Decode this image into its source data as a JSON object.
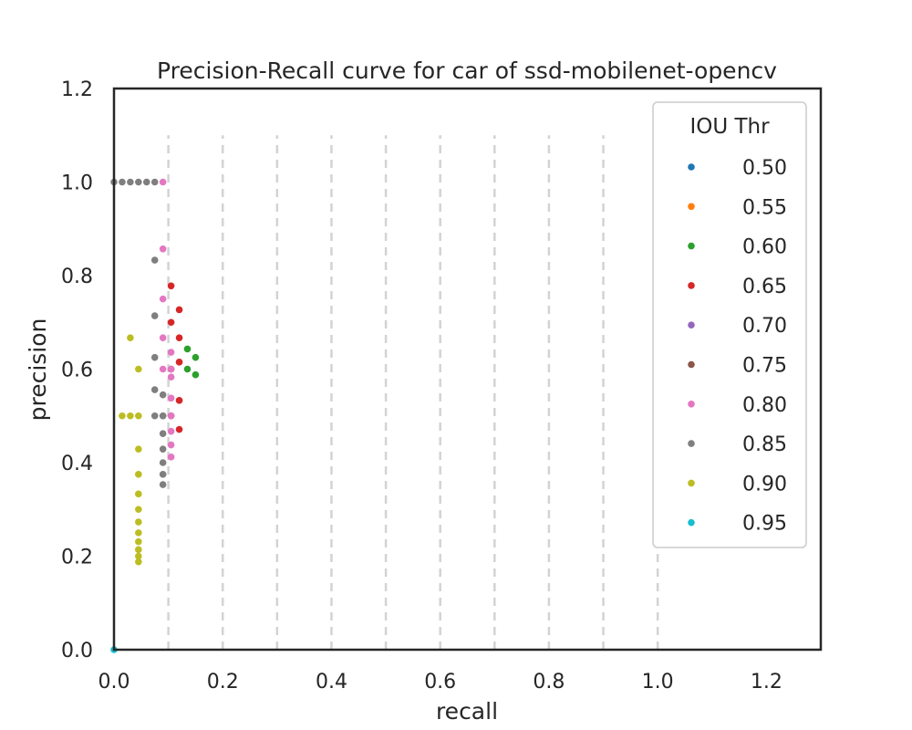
{
  "chart_data": {
    "type": "scatter",
    "title": "Precision-Recall curve for car of ssd-mobilenet-opencv",
    "xlabel": "recall",
    "ylabel": "precision",
    "xlim": [
      0.0,
      1.3
    ],
    "ylim": [
      0.0,
      1.2
    ],
    "xticks": [
      "0.0",
      "0.2",
      "0.4",
      "0.6",
      "0.8",
      "1.0",
      "1.2"
    ],
    "yticks": [
      "0.0",
      "0.2",
      "0.4",
      "0.6",
      "0.8",
      "1.0",
      "1.2"
    ],
    "x_tick_values": [
      0.0,
      0.2,
      0.4,
      0.6,
      0.8,
      1.0,
      1.2
    ],
    "y_tick_values": [
      0.0,
      0.2,
      0.4,
      0.6,
      0.8,
      1.0,
      1.2
    ],
    "vlines": {
      "x": [
        0.1,
        0.2,
        0.3,
        0.4,
        0.5,
        0.6,
        0.7,
        0.8,
        0.9,
        1.0
      ],
      "ymax": 1.1,
      "style": "dashed",
      "color": "#d3d3d3"
    },
    "grid": false,
    "legend": {
      "title": "IOU Thr",
      "position": "top-right"
    },
    "series": [
      {
        "name": "0.50",
        "color": "#1f77b4",
        "x": [],
        "y": []
      },
      {
        "name": "0.55",
        "color": "#ff7f0e",
        "x": [],
        "y": []
      },
      {
        "name": "0.60",
        "color": "#2ca02c",
        "x": [
          0.135,
          0.15,
          0.135,
          0.15
        ],
        "y": [
          0.643,
          0.625,
          0.6,
          0.588
        ]
      },
      {
        "name": "0.65",
        "color": "#d62728",
        "x": [
          0.105,
          0.12,
          0.105,
          0.12,
          0.12,
          0.105,
          0.12,
          0.105,
          0.12
        ],
        "y": [
          0.778,
          0.727,
          0.7,
          0.667,
          0.615,
          0.6,
          0.533,
          0.5,
          0.471
        ]
      },
      {
        "name": "0.70",
        "color": "#9467bd",
        "x": [],
        "y": []
      },
      {
        "name": "0.75",
        "color": "#8c564b",
        "x": [],
        "y": []
      },
      {
        "name": "0.80",
        "color": "#e377c2",
        "x": [
          0.09,
          0.09,
          0.09,
          0.09,
          0.09,
          0.105,
          0.105,
          0.105,
          0.105,
          0.105,
          0.105,
          0.105,
          0.105
        ],
        "y": [
          1.0,
          0.857,
          0.75,
          0.667,
          0.6,
          0.636,
          0.583,
          0.538,
          0.5,
          0.467,
          0.438,
          0.412,
          0.6
        ]
      },
      {
        "name": "0.85",
        "color": "#7f7f7f",
        "x": [
          0.0,
          0.015,
          0.03,
          0.045,
          0.06,
          0.075,
          0.075,
          0.075,
          0.075,
          0.075,
          0.075,
          0.09,
          0.09,
          0.09,
          0.09,
          0.09,
          0.09,
          0.09,
          0.09
        ],
        "y": [
          1.0,
          1.0,
          1.0,
          1.0,
          1.0,
          1.0,
          0.833,
          0.714,
          0.625,
          0.556,
          0.5,
          0.545,
          0.5,
          0.462,
          0.429,
          0.4,
          0.375,
          0.353,
          0.5
        ]
      },
      {
        "name": "0.90",
        "color": "#bcbd22",
        "x": [
          0.03,
          0.045,
          0.015,
          0.03,
          0.045,
          0.045,
          0.045,
          0.045,
          0.045,
          0.045,
          0.045,
          0.045,
          0.045,
          0.045,
          0.045
        ],
        "y": [
          0.667,
          0.6,
          0.5,
          0.5,
          0.5,
          0.429,
          0.375,
          0.333,
          0.3,
          0.273,
          0.25,
          0.231,
          0.214,
          0.2,
          0.188
        ]
      },
      {
        "name": "0.95",
        "color": "#17becf",
        "x": [
          0.0
        ],
        "y": [
          0.0
        ]
      }
    ]
  }
}
